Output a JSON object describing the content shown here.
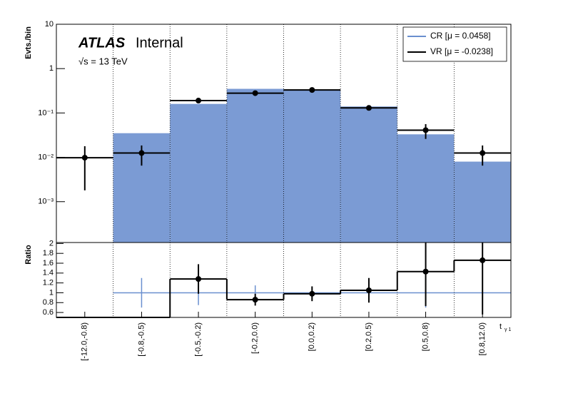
{
  "chart_data": {
    "type": "step",
    "y_label": "Evts./bin",
    "ratio_label": "Ratio",
    "x_label": "t",
    "x_label_sub": "γ 1",
    "experiment": "ATLAS",
    "status": "Internal",
    "energy": "√s = 13 TeV",
    "categories": [
      "[-12.0,-0.8)",
      "[-0.8,-0.5)",
      "[-0.5,-0.2)",
      "[-0.2,0.0)",
      "[0.0,0.2)",
      "[0.2,0.5)",
      "[0.5,0.8)",
      "[0.8,12.0)"
    ],
    "log_y": true,
    "ylim": [
      0.00012,
      10
    ],
    "yticks": [
      {
        "value": 10,
        "label": "10"
      },
      {
        "value": 1,
        "label": "1"
      },
      {
        "value": 0.1,
        "label": "10⁻¹"
      },
      {
        "value": 0.01,
        "label": "10⁻²"
      },
      {
        "value": 0.001,
        "label": "10⁻³"
      }
    ],
    "legend": "top-right",
    "series": [
      {
        "name": "CR [μ = 0.0458]",
        "color": "#7b9bd4",
        "line_color": "#6a8fcf",
        "values": [
          0,
          0.035,
          0.16,
          0.35,
          0.34,
          0.14,
          0.033,
          0.008
        ],
        "ratio_values": [
          null,
          1,
          1,
          1,
          1,
          1,
          1,
          1
        ],
        "ratio_errors": [
          null,
          0.3,
          0.25,
          0.15,
          0.05,
          0.05,
          0.3,
          0.3
        ]
      },
      {
        "name": "VR [μ = -0.0238]",
        "color": "#000000",
        "values": [
          0.0098,
          0.0125,
          0.19,
          0.28,
          0.33,
          0.13,
          0.041,
          0.0125
        ],
        "errors": [
          0.008,
          0.006,
          0.02,
          0.03,
          0.03,
          0.015,
          0.015,
          0.006
        ],
        "ratio_values": [
          0.5,
          0.5,
          1.28,
          0.86,
          0.98,
          1.05,
          1.43,
          1.66
        ],
        "ratio_errors": [
          null,
          null,
          0.3,
          0.12,
          0.15,
          0.25,
          0.7,
          1.1
        ]
      }
    ],
    "ratio_ylim": [
      0.5,
      2.02
    ],
    "ratio_yticks": [
      0.6,
      0.8,
      1,
      1.2,
      1.4,
      1.6,
      1.8,
      2
    ],
    "grid_x": true
  }
}
